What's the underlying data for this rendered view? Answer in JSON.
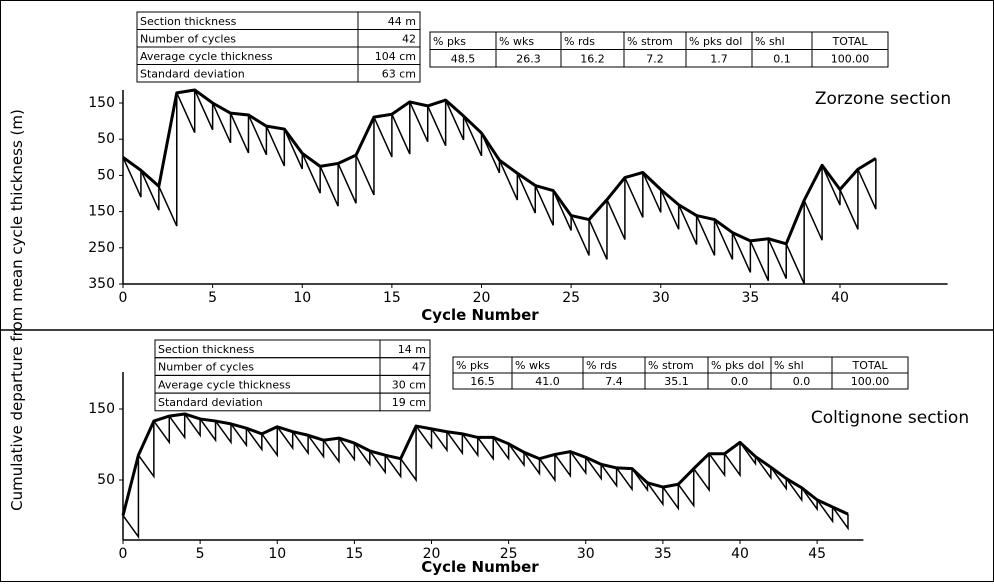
{
  "ylabel": "Cumulative departure from mean cycle thickness (m)",
  "chart_data": [
    {
      "type": "fischer",
      "title": "Zorzone section",
      "xlabel": "Cycle Number",
      "table": [
        [
          "Section thickness",
          "44 m"
        ],
        [
          "Number of cycles",
          "42"
        ],
        [
          "Average cycle thickness",
          "104 cm"
        ],
        [
          "Standard deviation",
          "63 cm"
        ]
      ],
      "composition": {
        "headers": [
          "% pks",
          "% wks",
          "% rds",
          "% strom",
          "% pks dol",
          "% shl",
          "TOTAL"
        ],
        "values": [
          "48.5",
          "26.3",
          "16.2",
          "7.2",
          "1.7",
          "0.1",
          "100.00"
        ]
      },
      "x": [
        0,
        1,
        2,
        3,
        4,
        5,
        6,
        7,
        8,
        9,
        10,
        11,
        12,
        13,
        14,
        15,
        16,
        17,
        18,
        19,
        20,
        21,
        22,
        23,
        24,
        25,
        26,
        27,
        28,
        29,
        30,
        31,
        32,
        33,
        34,
        35,
        36,
        37,
        38,
        39,
        40,
        41,
        42
      ],
      "values": [
        0,
        -36,
        -80,
        178,
        186,
        150,
        122,
        117,
        86,
        78,
        11,
        -25,
        -17,
        6,
        111,
        119,
        153,
        142,
        158,
        114,
        67,
        -8,
        -44,
        -78,
        -92,
        -161,
        -172,
        -117,
        -56,
        -42,
        -89,
        -131,
        -161,
        -172,
        -208,
        -231,
        -225,
        -239,
        -119,
        -22,
        -89,
        -33,
        -3
      ],
      "drop": 110,
      "color": "#000000",
      "xlim": [
        0,
        46
      ],
      "xticks": [
        0,
        5,
        10,
        15,
        20,
        25,
        30,
        35,
        40
      ],
      "ylim": [
        -350,
        180
      ],
      "yticks": [
        150,
        50,
        {
          "value": -50,
          "label": "50"
        },
        {
          "value": -150,
          "label": "150"
        },
        {
          "value": -250,
          "label": "250"
        },
        {
          "value": -350,
          "label": "350"
        }
      ]
    },
    {
      "type": "fischer",
      "title": "Coltignone section",
      "xlabel": "Cycle Number",
      "table": [
        [
          "Section thickness",
          "14  m"
        ],
        [
          "Number of cycles",
          "47"
        ],
        [
          "Average cycle thickness",
          "30 cm"
        ],
        [
          "Standard deviation",
          "19 cm"
        ]
      ],
      "composition": {
        "headers": [
          "% pks",
          "% wks",
          "% rds",
          "% strom",
          "% pks dol",
          "% shl",
          "TOTAL"
        ],
        "values": [
          "16.5",
          "41.0",
          "7.4",
          "35.1",
          "0.0",
          "0.0",
          "100.00"
        ]
      },
      "x": [
        0,
        1,
        2,
        3,
        4,
        5,
        6,
        7,
        8,
        9,
        10,
        11,
        12,
        13,
        14,
        15,
        16,
        17,
        18,
        19,
        20,
        21,
        22,
        23,
        24,
        25,
        26,
        27,
        28,
        29,
        30,
        31,
        32,
        33,
        34,
        35,
        36,
        37,
        38,
        39,
        40,
        41,
        42,
        43,
        44,
        45,
        46,
        47
      ],
      "values": [
        0,
        85,
        133,
        140,
        143,
        136,
        133,
        129,
        123,
        115,
        125,
        118,
        113,
        106,
        109,
        102,
        91,
        85,
        80,
        126,
        122,
        118,
        115,
        110,
        110,
        101,
        89,
        80,
        86,
        90,
        82,
        72,
        67,
        66,
        46,
        40,
        44,
        66,
        87,
        87,
        103,
        83,
        68,
        52,
        39,
        22,
        12,
        2
      ],
      "drop": 30,
      "color": "#000000",
      "xlim": [
        0,
        48
      ],
      "xticks": [
        0,
        5,
        10,
        15,
        20,
        25,
        30,
        35,
        40,
        45
      ],
      "ylim": [
        -35,
        200
      ],
      "yticks": [
        150,
        50
      ]
    }
  ]
}
